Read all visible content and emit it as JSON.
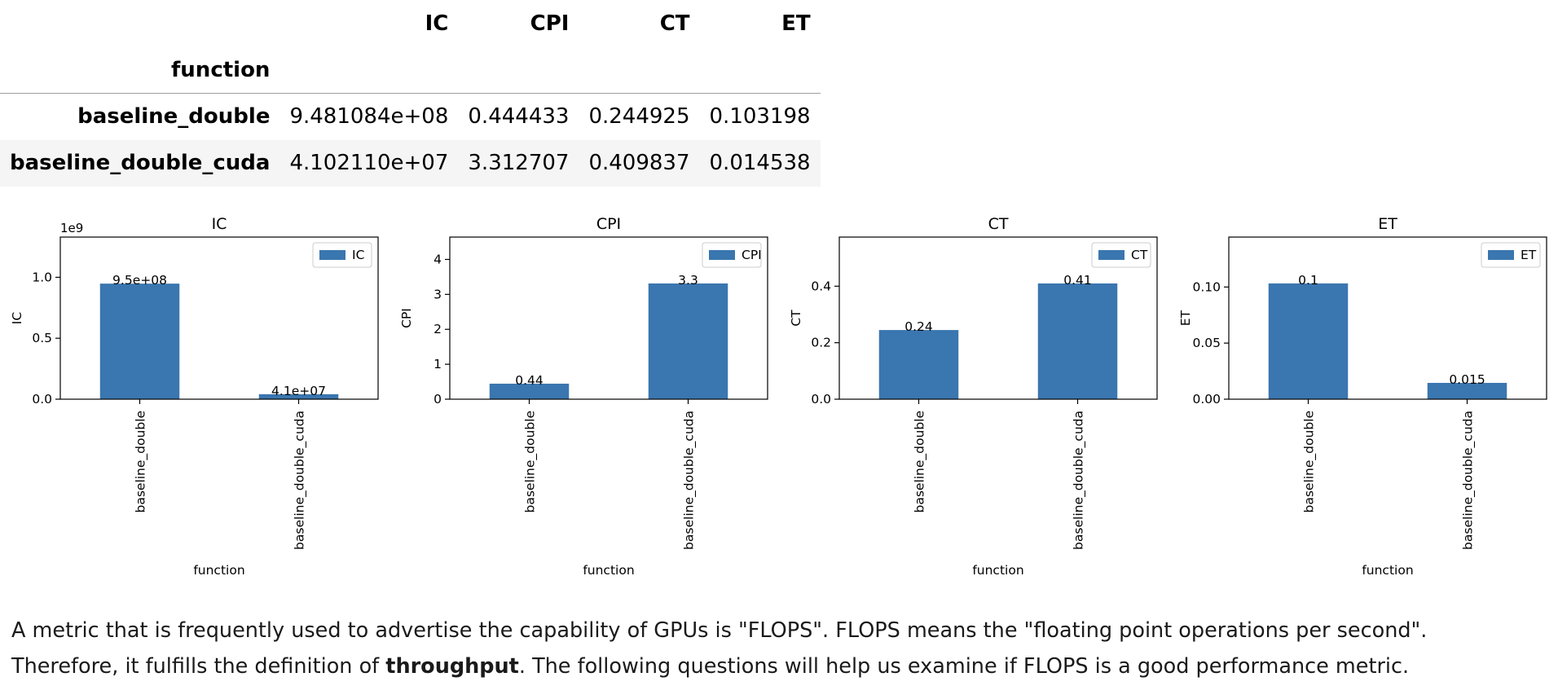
{
  "table": {
    "columns": [
      "IC",
      "CPI",
      "CT",
      "ET"
    ],
    "index_name": "function",
    "rows": [
      {
        "label": "baseline_double",
        "values": [
          "9.481084e+08",
          "0.444433",
          "0.244925",
          "0.103198"
        ]
      },
      {
        "label": "baseline_double_cuda",
        "values": [
          "4.102110e+07",
          "3.312707",
          "0.409837",
          "0.014538"
        ]
      }
    ]
  },
  "chart_data": [
    {
      "type": "bar",
      "title": "IC",
      "xlabel": "function",
      "ylabel": "IC",
      "categories": [
        "baseline_double",
        "baseline_double_cuda"
      ],
      "values": [
        948108400,
        41021100
      ],
      "data_labels": [
        "9.5e+08",
        "4.1e+07"
      ],
      "legend": "IC",
      "ylim": [
        0,
        1330000000
      ],
      "yticks": [
        0,
        500000000,
        1000000000
      ],
      "ytick_labels": [
        "0.0",
        "0.5",
        "1.0"
      ],
      "offset_text": "1e9",
      "color": "#3a76af"
    },
    {
      "type": "bar",
      "title": "CPI",
      "xlabel": "function",
      "ylabel": "CPI",
      "categories": [
        "baseline_double",
        "baseline_double_cuda"
      ],
      "values": [
        0.444433,
        3.312707
      ],
      "data_labels": [
        "0.44",
        "3.3"
      ],
      "legend": "CPI",
      "ylim": [
        0,
        4.64
      ],
      "yticks": [
        0,
        1,
        2,
        3,
        4
      ],
      "ytick_labels": [
        "0",
        "1",
        "2",
        "3",
        "4"
      ],
      "offset_text": "",
      "color": "#3a76af"
    },
    {
      "type": "bar",
      "title": "CT",
      "xlabel": "function",
      "ylabel": "CT",
      "categories": [
        "baseline_double",
        "baseline_double_cuda"
      ],
      "values": [
        0.244925,
        0.409837
      ],
      "data_labels": [
        "0.24",
        "0.41"
      ],
      "legend": "CT",
      "ylim": [
        0,
        0.574
      ],
      "yticks": [
        0,
        0.2,
        0.4
      ],
      "ytick_labels": [
        "0.0",
        "0.2",
        "0.4"
      ],
      "offset_text": "",
      "color": "#3a76af"
    },
    {
      "type": "bar",
      "title": "ET",
      "xlabel": "function",
      "ylabel": "ET",
      "categories": [
        "baseline_double",
        "baseline_double_cuda"
      ],
      "values": [
        0.103198,
        0.014538
      ],
      "data_labels": [
        "0.1",
        "0.015"
      ],
      "legend": "ET",
      "ylim": [
        0,
        0.1445
      ],
      "yticks": [
        0,
        0.05,
        0.1
      ],
      "ytick_labels": [
        "0.00",
        "0.05",
        "0.10"
      ],
      "offset_text": "",
      "color": "#3a76af"
    }
  ],
  "paragraph": {
    "line1": "A metric that is frequently used to advertise the capability of GPUs is \"FLOPS\". FLOPS means the \"floating point operations per second\".",
    "line2_before": "Therefore, it fulfills the definition of ",
    "line2_bold": "throughput",
    "line2_after": ". The following questions will help us examine if FLOPS is a good performance metric."
  }
}
